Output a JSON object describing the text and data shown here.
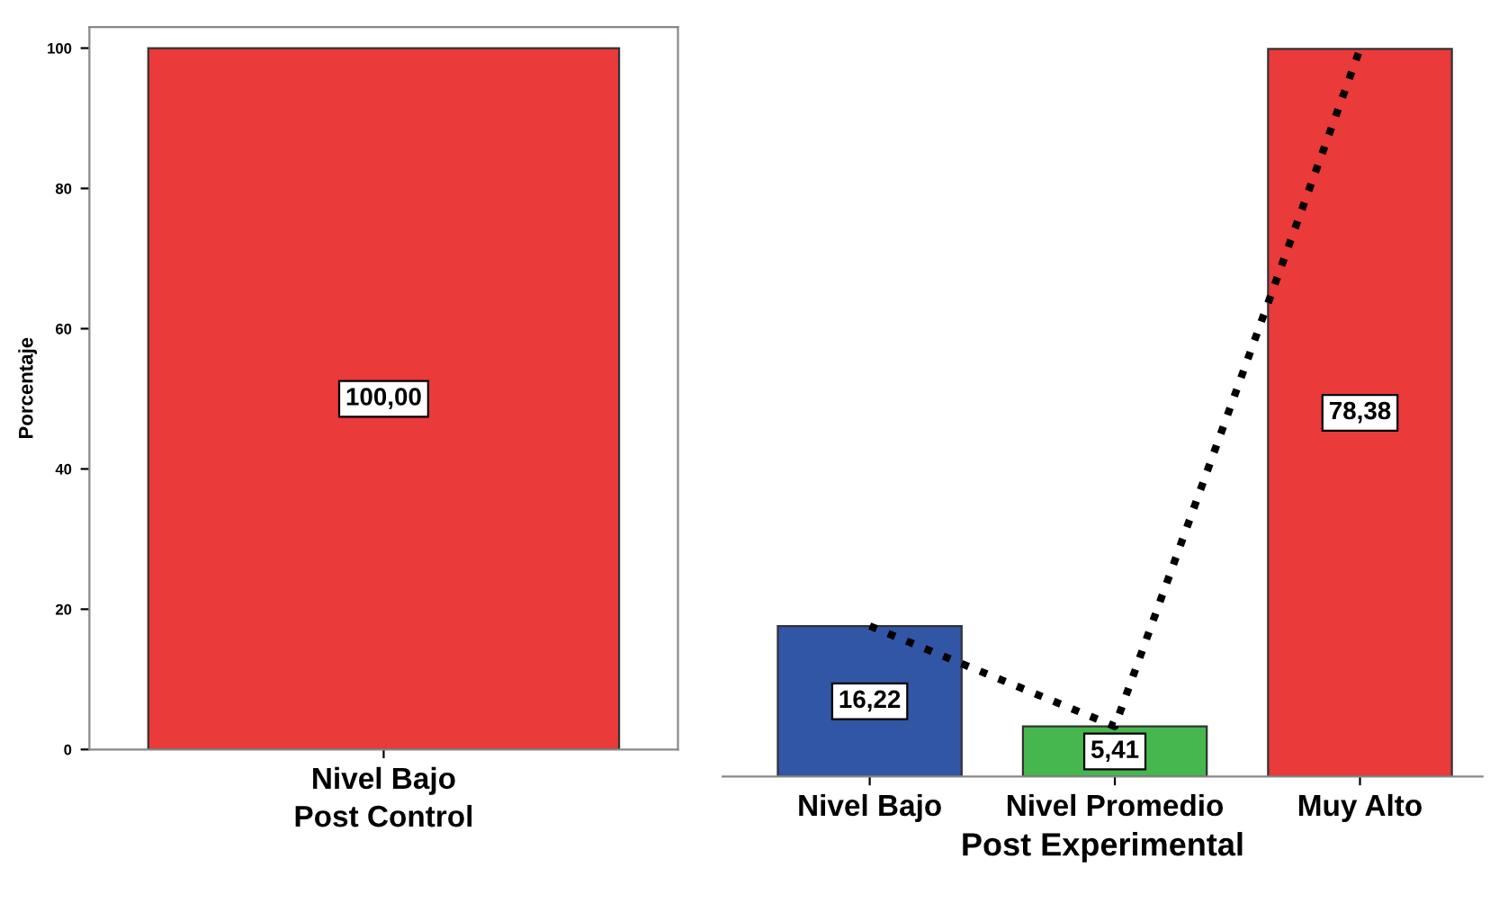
{
  "chart_data": [
    {
      "type": "bar",
      "xlabel": "Post Control",
      "ylabel": "Porcentaje",
      "categories": [
        "Nivel Bajo"
      ],
      "values": [
        100
      ],
      "color": "#ea3a3a",
      "value_labels": [
        "100,00"
      ],
      "ylim": [
        0,
        103
      ],
      "yticks": [
        0,
        20,
        40,
        60,
        80,
        100
      ],
      "grid": false
    },
    {
      "type": "bar",
      "xlabel": "Post Experimental",
      "categories": [
        "Nivel Bajo",
        "Nivel Promedio",
        "Muy Alto"
      ],
      "tick_labels": "x",
      "grid": false,
      "series": [
        {
          "type": "bar",
          "colors": [
            "#3156a6",
            "#46b74e",
            "#ea3a3a"
          ],
          "values": [
            16.22,
            5.41,
            78.38
          ],
          "value_labels": [
            "16,22",
            "5,41",
            "78,38"
          ]
        },
        {
          "type": "line",
          "color": "#000000",
          "values": [
            16.22,
            5.41,
            78.38
          ],
          "line_style": "dotted",
          "marker": "none"
        }
      ]
    }
  ]
}
